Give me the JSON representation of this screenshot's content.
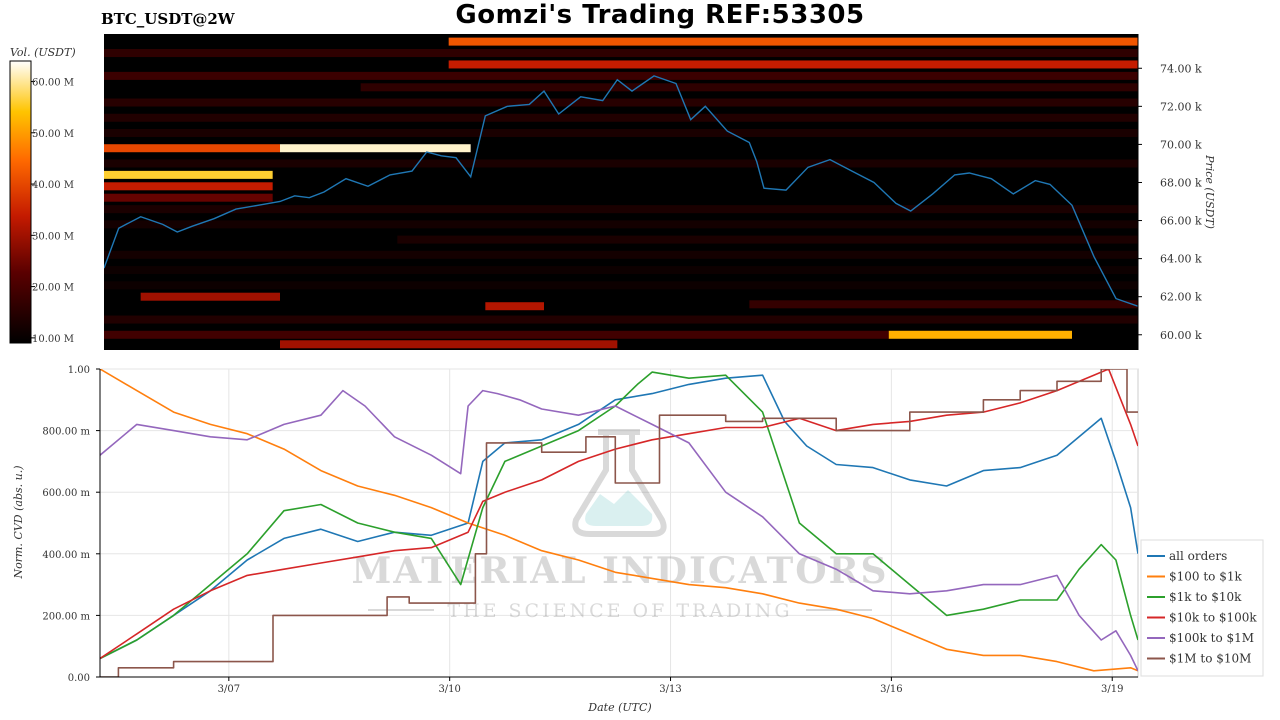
{
  "title": "Gomzi's Trading REF:53305",
  "pair": "BTC_USDT@2W",
  "colorbar": {
    "label": "Vol. (USDT)",
    "ticks": [
      "10.00 M",
      "20.00 M",
      "30.00 M",
      "40.00 M",
      "50.00 M",
      "60.00 M"
    ],
    "tick_values": [
      10,
      20,
      30,
      40,
      50,
      60
    ],
    "range": [
      9,
      64
    ]
  },
  "watermark": {
    "line1": "MATERIAL INDICATORS",
    "line2": "THE SCIENCE OF TRADING"
  },
  "colors": {
    "all_orders": "#1f77b4",
    "usd100_1k": "#ff7f0e",
    "usd1k_10k": "#2ca02c",
    "usd10k_100k": "#d62728",
    "usd100k_1m": "#9467bd",
    "usd1m_10m": "#8c564b"
  },
  "chart_data": [
    {
      "type": "heatmap",
      "name": "orderbook-heatmap",
      "ylabel": "Price (USDT)",
      "y_ticks": [
        "60.00 k",
        "62.00 k",
        "64.00 k",
        "66.00 k",
        "68.00 k",
        "70.00 k",
        "72.00 k",
        "74.00 k"
      ],
      "y_tick_values": [
        60000,
        62000,
        64000,
        66000,
        68000,
        70000,
        72000,
        74000
      ],
      "ylim": [
        59200,
        75800
      ],
      "xlim": [
        0,
        14.1
      ],
      "x_note": "days since 3/05 (3/07=1.75)",
      "price_line": {
        "color": "#1f77b4",
        "x": [
          0,
          0.2,
          0.5,
          0.8,
          1.0,
          1.2,
          1.5,
          1.8,
          2.1,
          2.4,
          2.6,
          2.8,
          3.0,
          3.3,
          3.6,
          3.9,
          4.2,
          4.4,
          4.6,
          4.8,
          5.0,
          5.2,
          5.5,
          5.8,
          6.0,
          6.2,
          6.5,
          6.8,
          7.0,
          7.2,
          7.5,
          7.8,
          8.0,
          8.2,
          8.5,
          8.8,
          8.9,
          9.0,
          9.3,
          9.6,
          9.9,
          10.2,
          10.5,
          10.8,
          11.0,
          11.3,
          11.6,
          11.8,
          12.1,
          12.4,
          12.7,
          12.9,
          13.2,
          13.5,
          13.8,
          14.1
        ],
        "y": [
          63500,
          65600,
          66200,
          65800,
          65400,
          65700,
          66100,
          66600,
          66800,
          67000,
          67300,
          67200,
          67500,
          68200,
          67800,
          68400,
          68600,
          69600,
          69400,
          69300,
          68300,
          71500,
          72000,
          72100,
          72800,
          71600,
          72500,
          72300,
          73400,
          72800,
          73600,
          73200,
          71300,
          72000,
          70700,
          70100,
          69100,
          67700,
          67600,
          68800,
          69200,
          68600,
          68000,
          66900,
          66500,
          67400,
          68400,
          68500,
          68200,
          67400,
          68100,
          67900,
          66800,
          64100,
          61900,
          61500
        ]
      },
      "bands": [
        {
          "price": 75400,
          "x": [
            4.7,
            14.1
          ],
          "v": 42
        },
        {
          "price": 74800,
          "x": [
            0,
            14.1
          ],
          "v": 16
        },
        {
          "price": 74200,
          "x": [
            4.7,
            14.1
          ],
          "v": 34
        },
        {
          "price": 73600,
          "x": [
            0,
            14.1
          ],
          "v": 18
        },
        {
          "price": 73000,
          "x": [
            3.5,
            14.1
          ],
          "v": 16
        },
        {
          "price": 72200,
          "x": [
            0,
            14.1
          ],
          "v": 15
        },
        {
          "price": 71400,
          "x": [
            0,
            14.1
          ],
          "v": 14
        },
        {
          "price": 70600,
          "x": [
            0,
            14.1
          ],
          "v": 13
        },
        {
          "price": 69800,
          "x": [
            0,
            2.4
          ],
          "v": 40
        },
        {
          "price": 69800,
          "x": [
            2.4,
            5.0
          ],
          "v": 62
        },
        {
          "price": 69000,
          "x": [
            0,
            14.1
          ],
          "v": 13
        },
        {
          "price": 68400,
          "x": [
            0,
            2.3
          ],
          "v": 56
        },
        {
          "price": 67800,
          "x": [
            0,
            2.3
          ],
          "v": 34
        },
        {
          "price": 67200,
          "x": [
            0,
            2.3
          ],
          "v": 24
        },
        {
          "price": 66600,
          "x": [
            0,
            14.1
          ],
          "v": 13
        },
        {
          "price": 65800,
          "x": [
            0,
            14.1
          ],
          "v": 12
        },
        {
          "price": 65000,
          "x": [
            4.0,
            14.1
          ],
          "v": 13
        },
        {
          "price": 64200,
          "x": [
            0,
            14.1
          ],
          "v": 12
        },
        {
          "price": 63400,
          "x": [
            0,
            14.1
          ],
          "v": 11
        },
        {
          "price": 62600,
          "x": [
            0,
            14.1
          ],
          "v": 11
        },
        {
          "price": 62000,
          "x": [
            0.5,
            2.4
          ],
          "v": 30
        },
        {
          "price": 61500,
          "x": [
            5.2,
            6.0
          ],
          "v": 32
        },
        {
          "price": 61600,
          "x": [
            8.8,
            14.1
          ],
          "v": 17
        },
        {
          "price": 60800,
          "x": [
            0,
            14.1
          ],
          "v": 14
        },
        {
          "price": 60000,
          "x": [
            10.7,
            13.2
          ],
          "v": 52
        },
        {
          "price": 60000,
          "x": [
            0,
            10.7
          ],
          "v": 19
        },
        {
          "price": 59500,
          "x": [
            2.4,
            7.0
          ],
          "v": 30
        }
      ]
    },
    {
      "type": "line",
      "name": "cvd-lines",
      "xlabel": "Date (UTC)",
      "ylabel": "Norm. CVD (abs. u.)",
      "x_ticks": [
        "3/07",
        "3/10",
        "3/13",
        "3/16",
        "3/19"
      ],
      "x_tick_values": [
        1.75,
        4.75,
        7.75,
        10.75,
        13.75
      ],
      "xlim": [
        0,
        14.1
      ],
      "y_ticks": [
        "0.00",
        "200.00 m",
        "400.00 m",
        "600.00 m",
        "800.00 m",
        "1.00"
      ],
      "y_tick_values": [
        0,
        0.2,
        0.4,
        0.6,
        0.8,
        1.0
      ],
      "ylim": [
        0,
        1.0
      ],
      "legend_position": "lower-right outside",
      "series": [
        {
          "name": "all orders",
          "key": "all_orders",
          "x": [
            0,
            0.5,
            1.0,
            1.5,
            2.0,
            2.5,
            3.0,
            3.5,
            4.0,
            4.5,
            5.0,
            5.2,
            5.5,
            6.0,
            6.5,
            7.0,
            7.5,
            8.0,
            8.5,
            9.0,
            9.3,
            9.6,
            10.0,
            10.5,
            11.0,
            11.5,
            12.0,
            12.5,
            13.0,
            13.3,
            13.6,
            13.8,
            14.0,
            14.1
          ],
          "y": [
            0.06,
            0.12,
            0.2,
            0.28,
            0.38,
            0.45,
            0.48,
            0.44,
            0.47,
            0.46,
            0.5,
            0.7,
            0.76,
            0.77,
            0.82,
            0.9,
            0.92,
            0.95,
            0.97,
            0.98,
            0.83,
            0.75,
            0.69,
            0.68,
            0.64,
            0.62,
            0.67,
            0.68,
            0.72,
            0.78,
            0.84,
            0.7,
            0.55,
            0.4
          ]
        },
        {
          "name": "$100 to $1k",
          "key": "usd100_1k",
          "x": [
            0,
            0.5,
            1.0,
            1.5,
            2.0,
            2.5,
            3.0,
            3.5,
            4.0,
            4.5,
            5.0,
            5.5,
            6.0,
            6.5,
            7.0,
            7.5,
            8.0,
            8.5,
            9.0,
            9.5,
            10.0,
            10.5,
            11.0,
            11.5,
            12.0,
            12.5,
            13.0,
            13.5,
            14.0,
            14.1
          ],
          "y": [
            1.0,
            0.93,
            0.86,
            0.82,
            0.79,
            0.74,
            0.67,
            0.62,
            0.59,
            0.55,
            0.5,
            0.46,
            0.41,
            0.38,
            0.34,
            0.32,
            0.3,
            0.29,
            0.27,
            0.24,
            0.22,
            0.19,
            0.14,
            0.09,
            0.07,
            0.07,
            0.05,
            0.02,
            0.03,
            0.02
          ]
        },
        {
          "name": "$1k to $10k",
          "key": "usd1k_10k",
          "x": [
            0,
            0.5,
            1.0,
            1.5,
            2.0,
            2.5,
            3.0,
            3.5,
            4.0,
            4.5,
            4.9,
            5.2,
            5.5,
            6.0,
            6.5,
            7.0,
            7.3,
            7.5,
            8.0,
            8.5,
            9.0,
            9.5,
            10.0,
            10.5,
            11.0,
            11.5,
            12.0,
            12.5,
            13.0,
            13.3,
            13.6,
            13.8,
            14.0,
            14.1
          ],
          "y": [
            0.06,
            0.12,
            0.2,
            0.3,
            0.4,
            0.54,
            0.56,
            0.5,
            0.47,
            0.45,
            0.3,
            0.55,
            0.7,
            0.75,
            0.8,
            0.88,
            0.95,
            0.99,
            0.97,
            0.98,
            0.86,
            0.5,
            0.4,
            0.4,
            0.3,
            0.2,
            0.22,
            0.25,
            0.25,
            0.35,
            0.43,
            0.38,
            0.2,
            0.12
          ]
        },
        {
          "name": "$10k to $100k",
          "key": "usd10k_100k",
          "x": [
            0,
            0.5,
            1.0,
            1.5,
            2.0,
            2.5,
            3.0,
            3.5,
            4.0,
            4.5,
            5.0,
            5.2,
            5.5,
            6.0,
            6.5,
            7.0,
            7.5,
            8.0,
            8.5,
            9.0,
            9.5,
            10.0,
            10.5,
            11.0,
            11.5,
            12.0,
            12.5,
            13.0,
            13.5,
            13.7,
            14.0,
            14.1
          ],
          "y": [
            0.06,
            0.14,
            0.22,
            0.28,
            0.33,
            0.35,
            0.37,
            0.39,
            0.41,
            0.42,
            0.47,
            0.57,
            0.6,
            0.64,
            0.7,
            0.74,
            0.77,
            0.79,
            0.81,
            0.81,
            0.84,
            0.8,
            0.82,
            0.83,
            0.85,
            0.86,
            0.89,
            0.93,
            0.98,
            1.0,
            0.82,
            0.75
          ]
        },
        {
          "name": "$100k to $1M",
          "key": "usd100k_1m",
          "x": [
            0,
            0.5,
            1.0,
            1.5,
            2.0,
            2.5,
            3.0,
            3.3,
            3.6,
            4.0,
            4.5,
            4.9,
            5.0,
            5.2,
            5.4,
            5.7,
            6.0,
            6.5,
            7.0,
            7.5,
            8.0,
            8.5,
            9.0,
            9.5,
            10.0,
            10.5,
            11.0,
            11.5,
            12.0,
            12.5,
            13.0,
            13.3,
            13.6,
            13.8,
            14.0,
            14.1
          ],
          "y": [
            0.72,
            0.82,
            0.8,
            0.78,
            0.77,
            0.82,
            0.85,
            0.93,
            0.88,
            0.78,
            0.72,
            0.66,
            0.88,
            0.93,
            0.92,
            0.9,
            0.87,
            0.85,
            0.88,
            0.82,
            0.76,
            0.6,
            0.52,
            0.4,
            0.35,
            0.28,
            0.27,
            0.28,
            0.3,
            0.3,
            0.33,
            0.2,
            0.12,
            0.15,
            0.07,
            0.02
          ]
        },
        {
          "name": "$1M to $10M",
          "key": "usd1m_10m",
          "x": [
            0,
            0.25,
            0.25,
            1.0,
            1.0,
            2.35,
            2.35,
            3.9,
            3.9,
            4.2,
            4.2,
            5.1,
            5.1,
            5.25,
            5.25,
            6.0,
            6.0,
            6.6,
            6.6,
            7.0,
            7.0,
            7.6,
            7.6,
            8.5,
            8.5,
            9.0,
            9.0,
            10.0,
            10.0,
            11.0,
            11.0,
            12.0,
            12.0,
            12.5,
            12.5,
            13.0,
            13.0,
            13.6,
            13.6,
            13.95,
            13.95,
            14.1
          ],
          "y": [
            0.0,
            0.0,
            0.03,
            0.03,
            0.05,
            0.05,
            0.2,
            0.2,
            0.26,
            0.26,
            0.24,
            0.24,
            0.4,
            0.4,
            0.76,
            0.76,
            0.73,
            0.73,
            0.78,
            0.78,
            0.63,
            0.63,
            0.85,
            0.85,
            0.83,
            0.83,
            0.84,
            0.84,
            0.8,
            0.8,
            0.86,
            0.86,
            0.9,
            0.9,
            0.93,
            0.93,
            0.96,
            0.96,
            1.0,
            1.0,
            0.86,
            0.86
          ]
        }
      ]
    }
  ]
}
